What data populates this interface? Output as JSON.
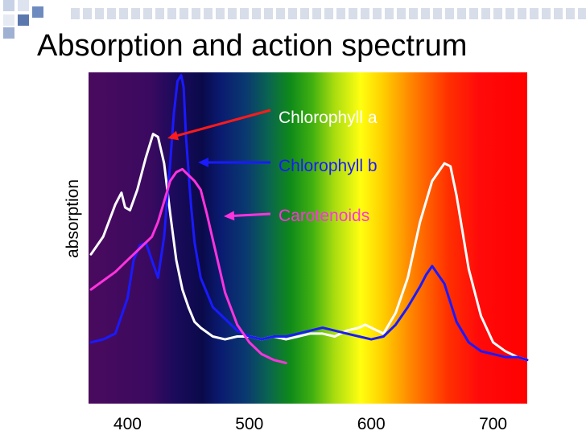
{
  "slide": {
    "title": "Absorption and action spectrum"
  },
  "colors": {
    "chlorophyll_a": "#ffffff",
    "chlorophyll_b": "#1a1aff",
    "carotenoids": "#ff33dd",
    "arrow_red": "#ff1a1a"
  },
  "chart_data": {
    "type": "line",
    "title": "Absorption and action spectrum",
    "xlabel": "",
    "ylabel": "absorption",
    "xlim": [
      368,
      728
    ],
    "ylim": [
      0,
      100
    ],
    "x_ticks": [
      400,
      500,
      600,
      700
    ],
    "x_tick_labels": [
      "400",
      "500",
      "600",
      "700"
    ],
    "grid": false,
    "background": "visible-light spectrum gradient (violet to red)",
    "series": [
      {
        "name": "Chlorophyll a",
        "label": "Chlorophyll a",
        "color": "#ffffff",
        "x": [
          370,
          380,
          390,
          395,
          398,
          402,
          408,
          415,
          421,
          425,
          430,
          435,
          440,
          445,
          450,
          455,
          460,
          470,
          480,
          490,
          500,
          510,
          520,
          530,
          540,
          550,
          560,
          570,
          580,
          590,
          595,
          600,
          610,
          620,
          630,
          640,
          650,
          660,
          665,
          670,
          680,
          690,
          700,
          710,
          720,
          728
        ],
        "y": [
          38,
          44,
          55,
          59,
          54,
          53,
          60,
          71,
          79,
          78,
          69,
          52,
          36,
          26,
          20,
          15,
          13,
          10,
          9,
          10,
          10,
          9,
          10,
          9,
          10,
          11,
          11,
          10,
          12,
          13,
          14,
          13,
          11,
          18,
          30,
          49,
          63,
          69,
          68,
          58,
          33,
          17,
          8,
          5,
          3,
          2
        ]
      },
      {
        "name": "Chlorophyll b",
        "label": "Chlorophyll b",
        "color": "#1a1aff",
        "x": [
          370,
          380,
          390,
          400,
          405,
          410,
          415,
          420,
          425,
          430,
          435,
          438,
          441,
          444,
          446,
          448,
          452,
          455,
          460,
          470,
          480,
          490,
          500,
          510,
          520,
          530,
          540,
          550,
          560,
          570,
          580,
          590,
          600,
          610,
          620,
          630,
          640,
          645,
          650,
          660,
          670,
          680,
          690,
          700,
          710,
          720,
          728
        ],
        "y": [
          8,
          9,
          11,
          23,
          36,
          41,
          42,
          36,
          30,
          44,
          69,
          86,
          97,
          99,
          95,
          78,
          55,
          42,
          30,
          20,
          16,
          12,
          10,
          9,
          10,
          10,
          11,
          12,
          13,
          12,
          11,
          10,
          9,
          10,
          14,
          20,
          27,
          31,
          34,
          28,
          15,
          8,
          5,
          4,
          3,
          3,
          2
        ]
      },
      {
        "name": "Carotenoids",
        "label": "Carotenoids",
        "color": "#ff33dd",
        "x": [
          370,
          380,
          390,
          400,
          410,
          420,
          425,
          430,
          435,
          440,
          445,
          450,
          455,
          460,
          465,
          470,
          475,
          480,
          490,
          500,
          510,
          520,
          530
        ],
        "y": [
          26,
          29,
          32,
          36,
          40,
          44,
          49,
          56,
          63,
          66,
          67,
          65,
          63,
          60,
          52,
          43,
          34,
          25,
          14,
          8,
          4,
          2,
          1
        ]
      }
    ],
    "annotations": [
      {
        "text": "Chlorophyll a",
        "color": "#ffffff",
        "points_to": "Chlorophyll a"
      },
      {
        "text": "Chlorophyll b",
        "color": "#1a1aff",
        "points_to": "Chlorophyll b"
      },
      {
        "text": "Carotenoids",
        "color": "#ff33dd",
        "points_to": "Carotenoids"
      }
    ]
  }
}
